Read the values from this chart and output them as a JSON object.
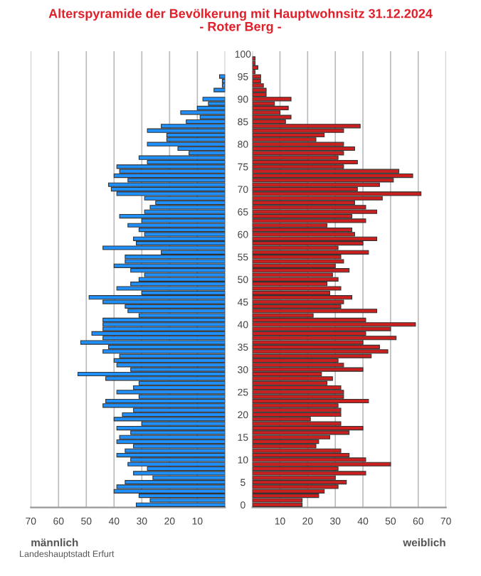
{
  "chart_data": [
    {
      "type": "bar",
      "orientation": "horizontal",
      "title": "Alterspyramide der Bevölkerung mit Hauptwohnsitz 31.12.2024\n- Roter Berg -",
      "xlabel": "männlich",
      "annotations": [
        "Landeshauptstadt Erfurt"
      ],
      "grid": "x",
      "color": "#1e90ff",
      "categories": [
        "100",
        null,
        null,
        null,
        null,
        "95",
        null,
        null,
        null,
        null,
        "90",
        null,
        null,
        null,
        null,
        "85",
        null,
        null,
        null,
        null,
        "80",
        null,
        null,
        null,
        null,
        "75",
        null,
        null,
        null,
        null,
        "70",
        null,
        null,
        null,
        null,
        "65",
        null,
        null,
        null,
        null,
        "60",
        null,
        null,
        null,
        null,
        "55",
        null,
        null,
        null,
        null,
        "50",
        null,
        null,
        null,
        null,
        "45",
        null,
        null,
        null,
        null,
        "40",
        null,
        null,
        null,
        null,
        "35",
        null,
        null,
        null,
        null,
        "30",
        null,
        null,
        null,
        null,
        "25",
        null,
        null,
        null,
        null,
        "20",
        null,
        null,
        null,
        null,
        "15",
        null,
        null,
        null,
        null,
        "10",
        null,
        null,
        null,
        null,
        "5",
        null,
        null,
        null,
        null,
        "0"
      ],
      "values": [
        0,
        0,
        0,
        0,
        0,
        2,
        1,
        1,
        4,
        0,
        8,
        6,
        10,
        16,
        9,
        14,
        23,
        28,
        21,
        21,
        28,
        17,
        13,
        31,
        28,
        39,
        38,
        40,
        35,
        42,
        41,
        39,
        29,
        25,
        27,
        29,
        38,
        30,
        35,
        31,
        29,
        33,
        32,
        44,
        23,
        36,
        36,
        40,
        34,
        29,
        31,
        34,
        39,
        30,
        49,
        44,
        36,
        35,
        31,
        44,
        44,
        44,
        48,
        44,
        52,
        42,
        44,
        38,
        40,
        39,
        34,
        53,
        43,
        31,
        33,
        39,
        31,
        43,
        44,
        33,
        37,
        40,
        30,
        39,
        34,
        38,
        39,
        33,
        36,
        39,
        34,
        35,
        28,
        33,
        26,
        36,
        39,
        40,
        31,
        27,
        32
      ],
      "xlim": [
        70,
        0
      ],
      "xticks": [
        70,
        60,
        50,
        40,
        30,
        20,
        10,
        {
          "value": 0,
          "label": null
        }
      ]
    },
    {
      "type": "bar",
      "orientation": "horizontal",
      "xlabel": "weiblich",
      "grid": "x",
      "color": "#cc1f1f",
      "tick_labels": "x",
      "categories": [
        "100",
        null,
        null,
        null,
        null,
        "95",
        null,
        null,
        null,
        null,
        "90",
        null,
        null,
        null,
        null,
        "85",
        null,
        null,
        null,
        null,
        "80",
        null,
        null,
        null,
        null,
        "75",
        null,
        null,
        null,
        null,
        "70",
        null,
        null,
        null,
        null,
        "65",
        null,
        null,
        null,
        null,
        "60",
        null,
        null,
        null,
        null,
        "55",
        null,
        null,
        null,
        null,
        "50",
        null,
        null,
        null,
        null,
        "45",
        null,
        null,
        null,
        null,
        "40",
        null,
        null,
        null,
        null,
        "35",
        null,
        null,
        null,
        null,
        "30",
        null,
        null,
        null,
        null,
        "25",
        null,
        null,
        null,
        null,
        "20",
        null,
        null,
        null,
        null,
        "15",
        null,
        null,
        null,
        null,
        "10",
        null,
        null,
        null,
        null,
        "5",
        null,
        null,
        null,
        null,
        "0"
      ],
      "values": [
        0,
        1,
        1,
        2,
        1,
        3,
        3,
        4,
        5,
        5,
        14,
        8,
        13,
        10,
        14,
        12,
        39,
        33,
        26,
        23,
        33,
        37,
        33,
        31,
        38,
        33,
        53,
        58,
        51,
        46,
        38,
        61,
        47,
        37,
        41,
        45,
        36,
        41,
        27,
        36,
        37,
        45,
        40,
        31,
        42,
        32,
        33,
        30,
        35,
        29,
        31,
        27,
        32,
        28,
        36,
        33,
        32,
        45,
        22,
        41,
        59,
        50,
        41,
        52,
        40,
        46,
        49,
        43,
        31,
        33,
        40,
        25,
        29,
        27,
        32,
        33,
        33,
        42,
        31,
        32,
        32,
        21,
        32,
        40,
        35,
        28,
        24,
        23,
        32,
        35,
        41,
        50,
        31,
        41,
        30,
        34,
        31,
        26,
        24,
        18,
        18
      ],
      "xlim": [
        0,
        70
      ],
      "xticks": [
        {
          "value": 0,
          "label": null
        },
        10,
        20,
        30,
        40,
        50,
        60,
        70
      ]
    }
  ]
}
